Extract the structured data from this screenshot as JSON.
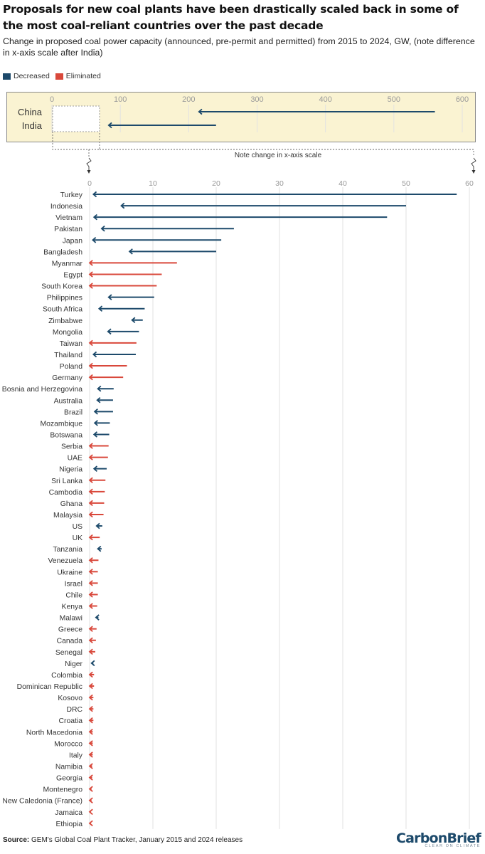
{
  "title": "Proposals for new coal plants have been drastically scaled back in some of the most coal-reliant countries over the past decade",
  "subtitle": "Change in proposed coal power capacity (announced, pre-permit and permitted) from 2015 to 2024, GW, (note difference in x-axis scale after India)",
  "legend": [
    {
      "label": "Decreased",
      "color": "#1d4a6b"
    },
    {
      "label": "Eliminated",
      "color": "#d9483b"
    }
  ],
  "colors": {
    "decreased": "#1d4a6b",
    "eliminated": "#d9483b",
    "inset_bg": "#faf3d2",
    "grid": "#e2e2e2"
  },
  "scale_note": "Note change in x-axis scale",
  "source": {
    "label": "Source:",
    "text": "GEM's Global Coal Plant Tracker, January 2015 and 2024 releases"
  },
  "brand": {
    "name": "CarbonBrief",
    "tagline": "CLEAR ON CLIMATE"
  },
  "chart_data": [
    {
      "type": "arrow-range",
      "panel": "inset",
      "xlim": [
        0,
        600
      ],
      "ticks": [
        0,
        100,
        200,
        300,
        400,
        500,
        600
      ],
      "rows": [
        {
          "country": "China",
          "from": 560,
          "to": 215,
          "status": "decreased"
        },
        {
          "country": "India",
          "from": 240,
          "to": 83,
          "status": "decreased"
        }
      ]
    },
    {
      "type": "arrow-range",
      "panel": "main",
      "xlim": [
        0,
        60
      ],
      "ticks": [
        0,
        10,
        20,
        30,
        40,
        50,
        60
      ],
      "rows": [
        {
          "country": "Turkey",
          "from": 58,
          "to": 0.6,
          "status": "decreased"
        },
        {
          "country": "Indonesia",
          "from": 50,
          "to": 5,
          "status": "decreased"
        },
        {
          "country": "Vietnam",
          "from": 47,
          "to": 0.7,
          "status": "decreased"
        },
        {
          "country": "Pakistan",
          "from": 22.8,
          "to": 1.9,
          "status": "decreased"
        },
        {
          "country": "Japan",
          "from": 20.8,
          "to": 0.5,
          "status": "decreased"
        },
        {
          "country": "Bangladesh",
          "from": 20,
          "to": 6.3,
          "status": "decreased"
        },
        {
          "country": "Myanmar",
          "from": 13.8,
          "to": 0,
          "status": "eliminated"
        },
        {
          "country": "Egypt",
          "from": 11.4,
          "to": 0,
          "status": "eliminated"
        },
        {
          "country": "South Korea",
          "from": 10.6,
          "to": 0,
          "status": "eliminated"
        },
        {
          "country": "Philippines",
          "from": 10.2,
          "to": 3,
          "status": "decreased"
        },
        {
          "country": "South Africa",
          "from": 8.7,
          "to": 1.5,
          "status": "decreased"
        },
        {
          "country": "Zimbabwe",
          "from": 8.4,
          "to": 6.7,
          "status": "decreased"
        },
        {
          "country": "Mongolia",
          "from": 7.8,
          "to": 2.9,
          "status": "decreased"
        },
        {
          "country": "Taiwan",
          "from": 7.4,
          "to": 0,
          "status": "eliminated"
        },
        {
          "country": "Thailand",
          "from": 7.3,
          "to": 0.6,
          "status": "decreased"
        },
        {
          "country": "Poland",
          "from": 5.9,
          "to": 0,
          "status": "eliminated"
        },
        {
          "country": "Germany",
          "from": 5.3,
          "to": 0,
          "status": "eliminated"
        },
        {
          "country": "Bosnia and Herzegovina",
          "from": 3.8,
          "to": 1.3,
          "status": "decreased"
        },
        {
          "country": "Australia",
          "from": 3.7,
          "to": 1.2,
          "status": "decreased"
        },
        {
          "country": "Brazil",
          "from": 3.7,
          "to": 0.8,
          "status": "decreased"
        },
        {
          "country": "Mozambique",
          "from": 3.2,
          "to": 0.8,
          "status": "decreased"
        },
        {
          "country": "Botswana",
          "from": 3.1,
          "to": 0.7,
          "status": "decreased"
        },
        {
          "country": "Serbia",
          "from": 3,
          "to": 0,
          "status": "eliminated"
        },
        {
          "country": "UAE",
          "from": 2.9,
          "to": 0,
          "status": "eliminated"
        },
        {
          "country": "Nigeria",
          "from": 2.7,
          "to": 0.7,
          "status": "decreased"
        },
        {
          "country": "Sri Lanka",
          "from": 2.5,
          "to": 0,
          "status": "eliminated"
        },
        {
          "country": "Cambodia",
          "from": 2.4,
          "to": 0,
          "status": "eliminated"
        },
        {
          "country": "Ghana",
          "from": 2.3,
          "to": 0,
          "status": "eliminated"
        },
        {
          "country": "Malaysia",
          "from": 2.2,
          "to": 0,
          "status": "eliminated"
        },
        {
          "country": "US",
          "from": 2,
          "to": 1.1,
          "status": "decreased"
        },
        {
          "country": "UK",
          "from": 1.6,
          "to": 0,
          "status": "eliminated"
        },
        {
          "country": "Tanzania",
          "from": 1.9,
          "to": 1.3,
          "status": "decreased"
        },
        {
          "country": "Venezuela",
          "from": 1.4,
          "to": 0,
          "status": "eliminated"
        },
        {
          "country": "Ukraine",
          "from": 1.3,
          "to": 0,
          "status": "eliminated"
        },
        {
          "country": "Israel",
          "from": 1.3,
          "to": 0,
          "status": "eliminated"
        },
        {
          "country": "Chile",
          "from": 1.3,
          "to": 0,
          "status": "eliminated"
        },
        {
          "country": "Kenya",
          "from": 1.2,
          "to": 0,
          "status": "eliminated"
        },
        {
          "country": "Malawi",
          "from": 1.4,
          "to": 1,
          "status": "decreased"
        },
        {
          "country": "Greece",
          "from": 1.1,
          "to": 0,
          "status": "eliminated"
        },
        {
          "country": "Canada",
          "from": 1,
          "to": 0,
          "status": "eliminated"
        },
        {
          "country": "Senegal",
          "from": 0.9,
          "to": 0,
          "status": "eliminated"
        },
        {
          "country": "Niger",
          "from": 0.6,
          "to": 0.3,
          "status": "decreased"
        },
        {
          "country": "Colombia",
          "from": 0.7,
          "to": 0,
          "status": "eliminated"
        },
        {
          "country": "Dominican Republic",
          "from": 0.7,
          "to": 0,
          "status": "eliminated"
        },
        {
          "country": "Kosovo",
          "from": 0.6,
          "to": 0,
          "status": "eliminated"
        },
        {
          "country": "DRC",
          "from": 0.6,
          "to": 0,
          "status": "eliminated"
        },
        {
          "country": "Croatia",
          "from": 0.6,
          "to": 0,
          "status": "eliminated"
        },
        {
          "country": "North Macedonia",
          "from": 0.5,
          "to": 0,
          "status": "eliminated"
        },
        {
          "country": "Morocco",
          "from": 0.5,
          "to": 0,
          "status": "eliminated"
        },
        {
          "country": "Italy",
          "from": 0.5,
          "to": 0,
          "status": "eliminated"
        },
        {
          "country": "Namibia",
          "from": 0.4,
          "to": 0,
          "status": "eliminated"
        },
        {
          "country": "Georgia",
          "from": 0.4,
          "to": 0,
          "status": "eliminated"
        },
        {
          "country": "Montenegro",
          "from": 0.3,
          "to": 0,
          "status": "eliminated"
        },
        {
          "country": "New Caledonia (France)",
          "from": 0.3,
          "to": 0,
          "status": "eliminated"
        },
        {
          "country": "Jamaica",
          "from": 0.2,
          "to": 0,
          "status": "eliminated"
        },
        {
          "country": "Ethiopia",
          "from": 0.2,
          "to": 0,
          "status": "eliminated"
        }
      ]
    }
  ]
}
